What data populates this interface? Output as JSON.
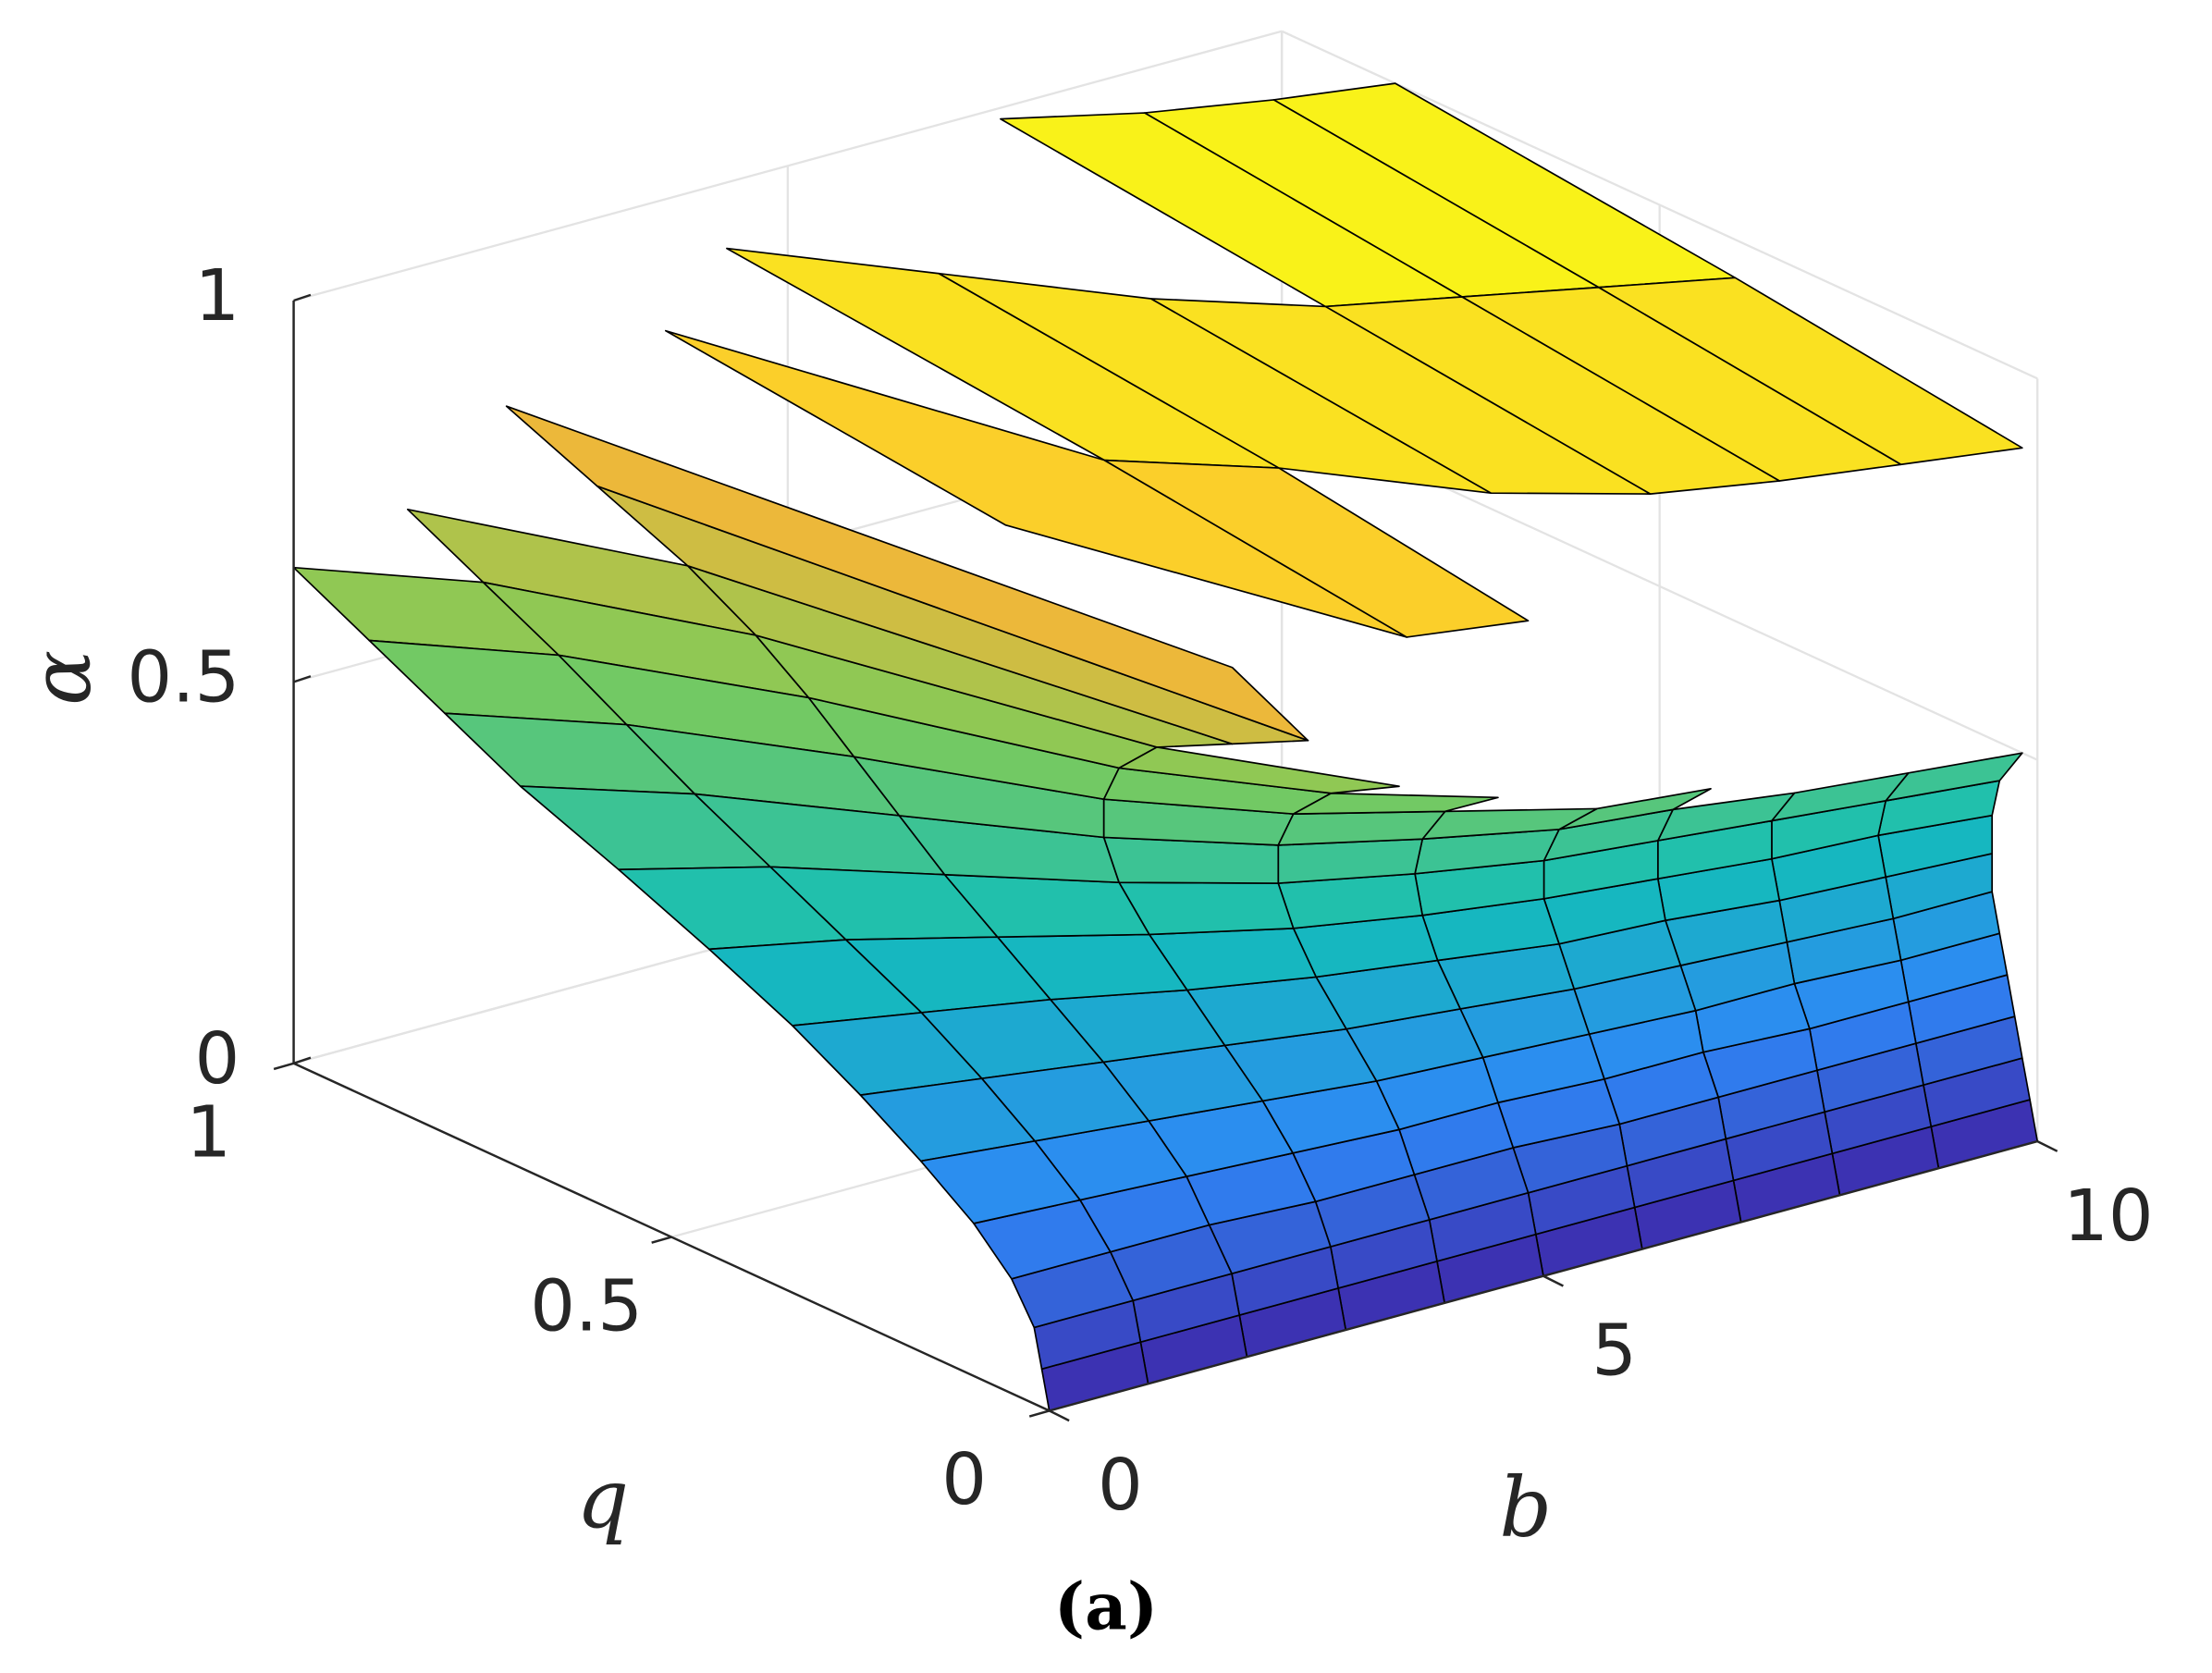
{
  "chart_data": {
    "type": "surface",
    "xlabel": "b",
    "ylabel": "q",
    "zlabel": "α",
    "caption": "(a)",
    "xlim": [
      0,
      10
    ],
    "xticks": [
      0,
      5,
      10
    ],
    "ylim": [
      0,
      1
    ],
    "yticks": [
      0,
      0.5,
      1
    ],
    "zlim": [
      0,
      1
    ],
    "zticks": [
      0,
      0.5,
      1
    ],
    "grid": true,
    "colormap": [
      "#3e26a8",
      "#2e87f7",
      "#13beb8",
      "#80cb58",
      "#fcb536",
      "#f9fb15"
    ],
    "edgecolor": "#000000",
    "b": [
      0,
      1,
      2,
      3,
      4,
      5,
      6,
      7,
      8,
      9,
      10
    ],
    "alpha": [
      0,
      0.05,
      0.1,
      0.15,
      0.2,
      0.25,
      0.3,
      0.35,
      0.4,
      0.45,
      0.5,
      0.55,
      0.6,
      0.65,
      0.7,
      0.75,
      0.8,
      0.85,
      0.9,
      0.95,
      1
    ],
    "q": [
      [
        0,
        0.01,
        0.02,
        0.05,
        0.1,
        0.17,
        0.25,
        0.34,
        0.45,
        0.57,
        0.7,
        0.8,
        0.9,
        1,
        null,
        null,
        null,
        null,
        null,
        null,
        null
      ],
      [
        0,
        0.01,
        0.02,
        0.05,
        0.09,
        0.15,
        0.22,
        0.3,
        0.4,
        0.5,
        0.6,
        0.69,
        0.78,
        0.88,
        0.98,
        null,
        null,
        null,
        null,
        null,
        null
      ],
      [
        0,
        0.01,
        0.02,
        0.05,
        0.08,
        0.13,
        0.19,
        0.26,
        0.33,
        0.4,
        0.46,
        0.52,
        0.58,
        0.65,
        0.74,
        0.86,
        0.98,
        null,
        null,
        null,
        null
      ],
      [
        0,
        0.01,
        0.02,
        0.04,
        0.07,
        0.11,
        0.16,
        0.21,
        0.26,
        0.3,
        0.32,
        0.32,
        0.3,
        0.25,
        0.15,
        0.05,
        0.15,
        0.45,
        0.9,
        null,
        null
      ],
      [
        0,
        0.01,
        0.02,
        0.04,
        0.06,
        0.09,
        0.13,
        0.17,
        0.2,
        0.22,
        0.22,
        0.2,
        0.15,
        0.06,
        null,
        null,
        null,
        0.05,
        0.45,
        0.95,
        null
      ],
      [
        0,
        0.01,
        0.02,
        0.04,
        0.06,
        0.08,
        0.11,
        0.14,
        0.16,
        0.17,
        0.16,
        0.13,
        0.06,
        null,
        null,
        null,
        null,
        0.02,
        0.35,
        0.8,
        null
      ],
      [
        0,
        0.01,
        0.02,
        0.03,
        0.05,
        0.07,
        0.09,
        0.11,
        0.13,
        0.13,
        0.11,
        0.06,
        null,
        null,
        null,
        null,
        null,
        null,
        0.2,
        0.65,
        null
      ],
      [
        0,
        0.01,
        0.02,
        0.03,
        0.05,
        0.06,
        0.08,
        0.1,
        0.11,
        0.11,
        0.09,
        0.04,
        null,
        null,
        null,
        null,
        null,
        null,
        0.12,
        0.55,
        0.98
      ],
      [
        0,
        0.01,
        0.02,
        0.03,
        0.04,
        0.06,
        0.07,
        0.08,
        0.09,
        0.09,
        0.06,
        null,
        null,
        null,
        null,
        null,
        null,
        null,
        0.08,
        0.5,
        0.92
      ],
      [
        0,
        0.01,
        0.02,
        0.03,
        0.04,
        0.05,
        0.06,
        0.07,
        0.08,
        0.07,
        0.04,
        null,
        null,
        null,
        null,
        null,
        null,
        null,
        0.05,
        0.45,
        0.88
      ],
      [
        0,
        0.01,
        0.02,
        0.03,
        0.04,
        0.05,
        0.06,
        0.06,
        0.06,
        0.05,
        0.02,
        null,
        null,
        null,
        null,
        null,
        null,
        null,
        0.02,
        0.4,
        0.85
      ]
    ]
  }
}
